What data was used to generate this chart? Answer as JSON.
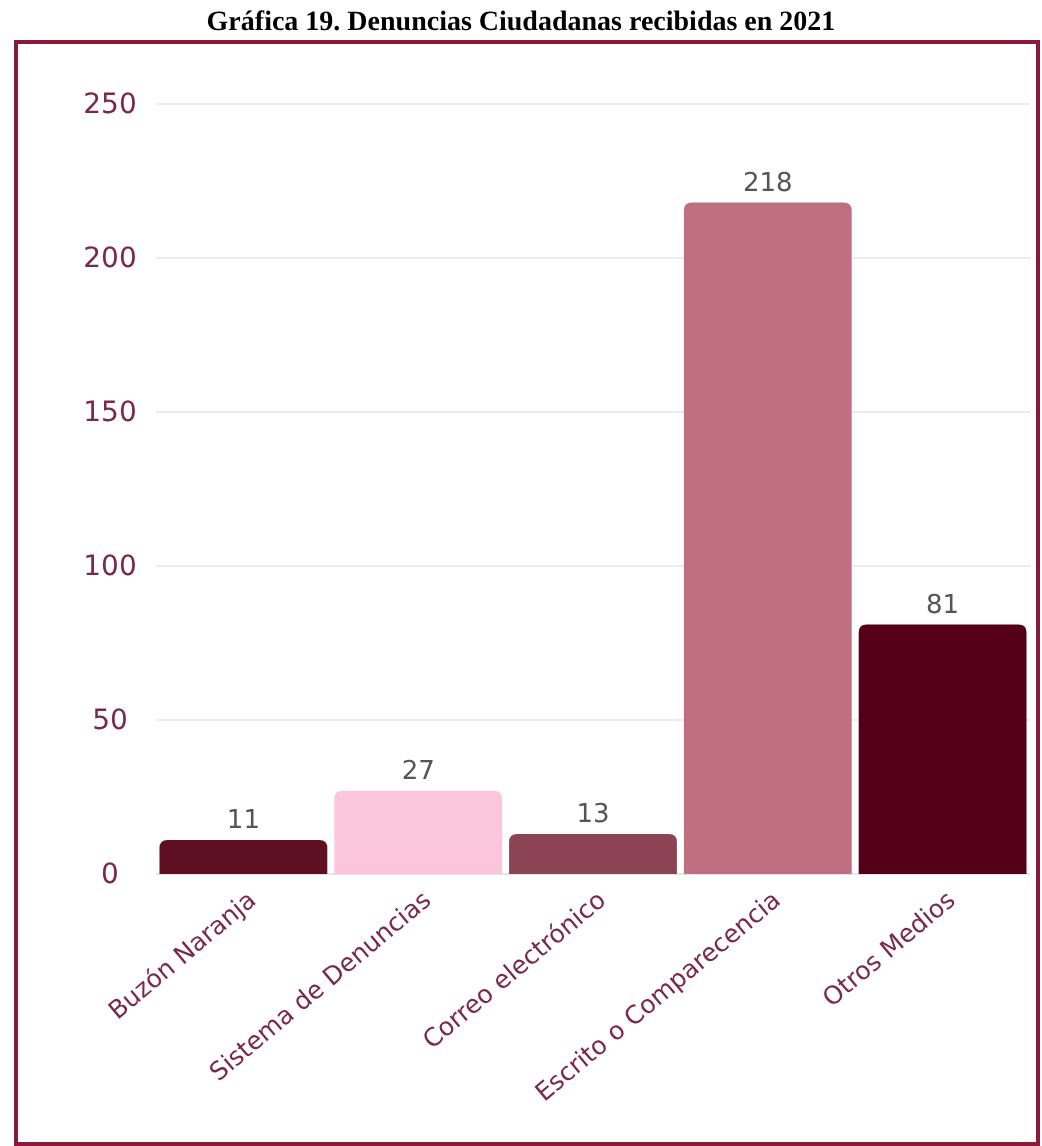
{
  "chart_data": {
    "type": "bar",
    "title": "Gráfica 19. Denuncias Ciudadanas recibidas en 2021",
    "categories": [
      "Buzón Naranja",
      "Sistema de Denuncias",
      "Correo electrónico",
      "Escrito o Comparecencia",
      "Otros Medios"
    ],
    "values": [
      11,
      27,
      13,
      218,
      81
    ],
    "colors": [
      "#5e0f22",
      "#fbc6db",
      "#8c4455",
      "#bf6f80",
      "#540018"
    ],
    "ylim": [
      0,
      250
    ],
    "yticks": [
      0,
      50,
      100,
      150,
      200,
      250
    ],
    "grid": "y",
    "data_labels": true
  }
}
